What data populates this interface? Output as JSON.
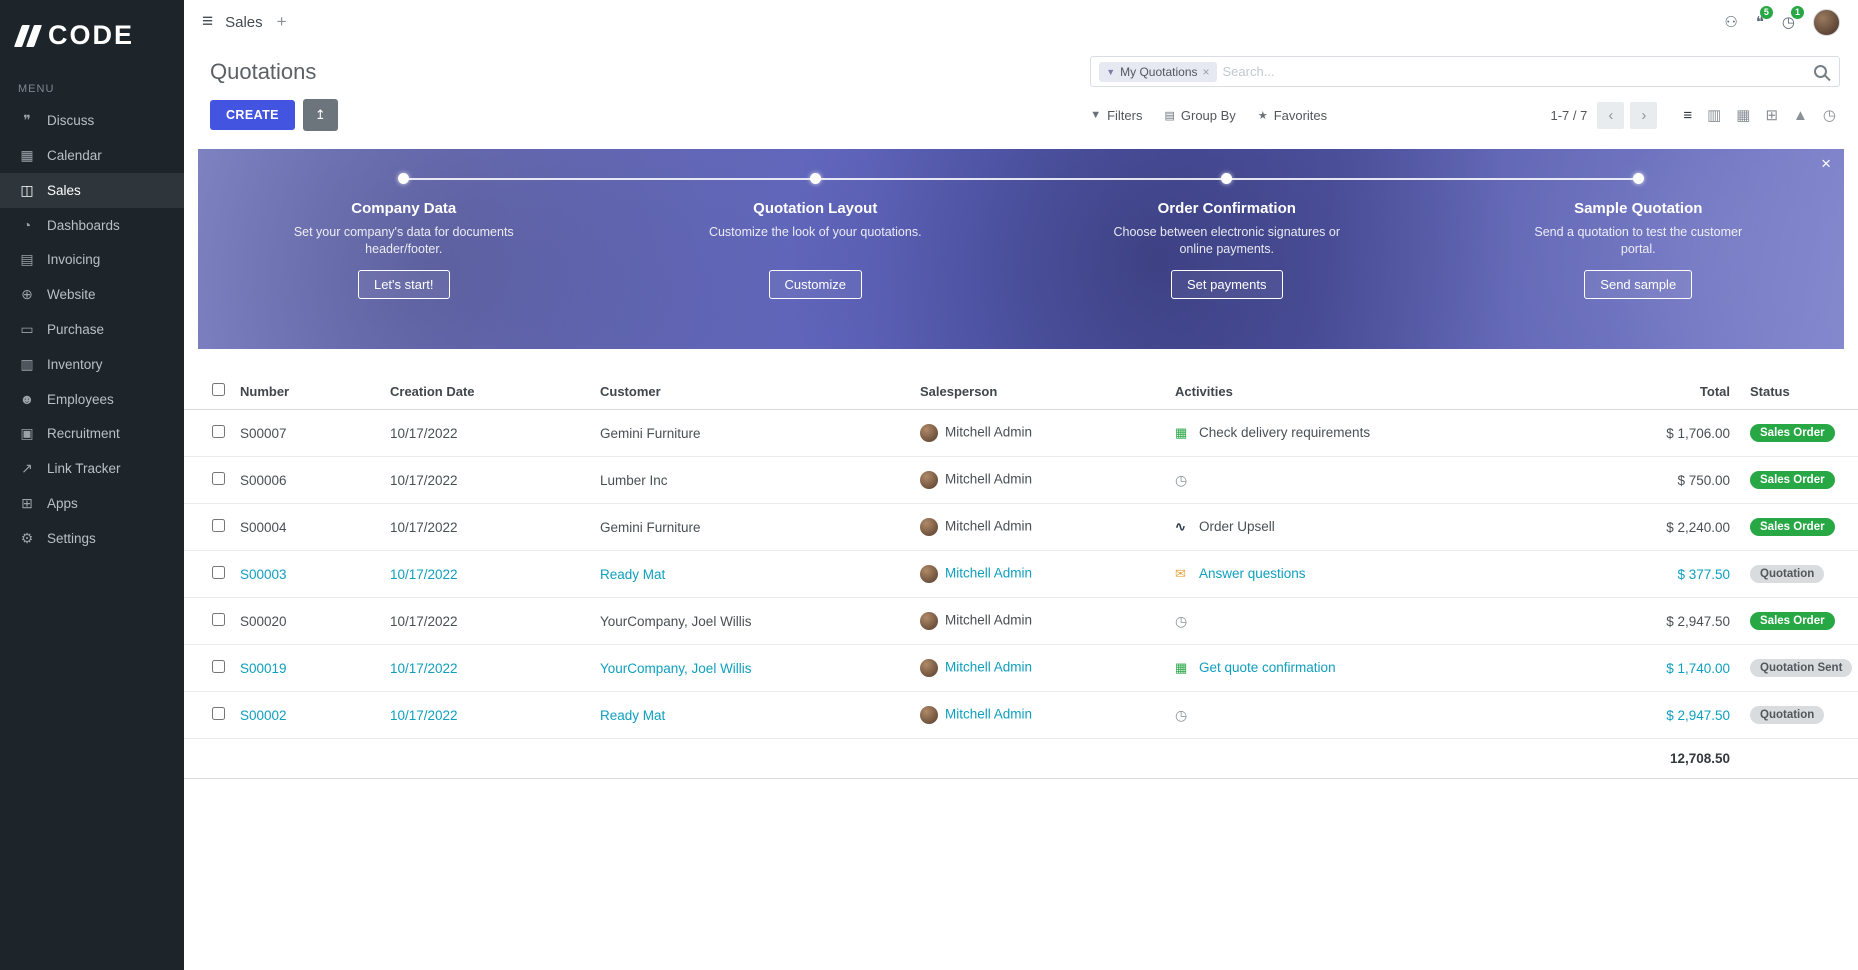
{
  "colors": {
    "sidebar_bg": "#1d252b",
    "accent": "#4355e0",
    "teal_link": "#0e9fbe",
    "success_badge": "#28a745",
    "neutral_badge": "#d8dcdf",
    "banner_purple": "#5a60bb"
  },
  "brand": {
    "name": "CODE"
  },
  "topbar": {
    "app_name": "Sales",
    "add_tab": "+",
    "message_badge": "5",
    "activity_badge": "1"
  },
  "sidebar": {
    "menu_label": "MENU",
    "items": [
      {
        "label": "Discuss",
        "icon": "discuss-icon",
        "glyph": "❞"
      },
      {
        "label": "Calendar",
        "icon": "calendar-icon",
        "glyph": "▦"
      },
      {
        "label": "Sales",
        "icon": "sales-icon",
        "glyph": "◫",
        "active": true
      },
      {
        "label": "Dashboards",
        "icon": "dashboards-icon",
        "glyph": "◔"
      },
      {
        "label": "Invoicing",
        "icon": "invoicing-icon",
        "glyph": "▤"
      },
      {
        "label": "Website",
        "icon": "website-icon",
        "glyph": "⊕"
      },
      {
        "label": "Purchase",
        "icon": "purchase-icon",
        "glyph": "▭"
      },
      {
        "label": "Inventory",
        "icon": "inventory-icon",
        "glyph": "▥"
      },
      {
        "label": "Employees",
        "icon": "employees-icon",
        "glyph": "☻"
      },
      {
        "label": "Recruitment",
        "icon": "recruitment-icon",
        "glyph": "▣"
      },
      {
        "label": "Link Tracker",
        "icon": "link-icon",
        "glyph": "↗"
      },
      {
        "label": "Apps",
        "icon": "apps-icon",
        "glyph": "⊞"
      },
      {
        "label": "Settings",
        "icon": "settings-icon",
        "glyph": "⚙"
      }
    ]
  },
  "control_panel": {
    "title": "Quotations",
    "create_label": "CREATE",
    "filter_chip": "My Quotations",
    "search_placeholder": "Search...",
    "filters_label": "Filters",
    "groupby_label": "Group By",
    "favorites_label": "Favorites",
    "pager": "1-7 / 7"
  },
  "banner": {
    "close_label": "×",
    "steps": [
      {
        "title": "Company Data",
        "description": "Set your company's data for documents header/footer.",
        "button": "Let's start!"
      },
      {
        "title": "Quotation Layout",
        "description": "Customize the look of your quotations.",
        "button": "Customize"
      },
      {
        "title": "Order Confirmation",
        "description": "Choose between electronic signatures or online payments.",
        "button": "Set payments"
      },
      {
        "title": "Sample Quotation",
        "description": "Send a quotation to test the customer portal.",
        "button": "Send sample"
      }
    ]
  },
  "icons": {
    "hamburger": "≡",
    "bug": "⚇",
    "messages": "❝",
    "clock": "◷",
    "funnel": "▼",
    "groupby": "▤",
    "star": "★",
    "export": "↥",
    "prev": "‹",
    "next": "›",
    "chip_remove": "×",
    "tasks": "▦",
    "chart": "∿",
    "envelope": "✉",
    "list_view": "≡",
    "kanban_view": "▥",
    "calendar_view": "▦",
    "pivot_view": "⊞",
    "graph_view": "▲",
    "activity_view": "◷"
  },
  "table": {
    "headers": {
      "number": "Number",
      "creation_date": "Creation Date",
      "customer": "Customer",
      "salesperson": "Salesperson",
      "activities": "Activities",
      "total": "Total",
      "status": "Status"
    },
    "rows": [
      {
        "number": "S00007",
        "creation_date": "10/17/2022",
        "customer": "Gemini Furniture",
        "salesperson": "Mitchell Admin",
        "activity": "Check delivery requirements",
        "activity_icon": "tasks-icon",
        "total": "$ 1,706.00",
        "status": "Sales Order",
        "status_variant": "success",
        "highlighted": false
      },
      {
        "number": "S00006",
        "creation_date": "10/17/2022",
        "customer": "Lumber Inc",
        "salesperson": "Mitchell Admin",
        "activity": "",
        "activity_icon": "clock-icon",
        "total": "$ 750.00",
        "status": "Sales Order",
        "status_variant": "success",
        "highlighted": false
      },
      {
        "number": "S00004",
        "creation_date": "10/17/2022",
        "customer": "Gemini Furniture",
        "salesperson": "Mitchell Admin",
        "activity": "Order Upsell",
        "activity_icon": "chart-icon",
        "total": "$ 2,240.00",
        "status": "Sales Order",
        "status_variant": "success",
        "highlighted": false
      },
      {
        "number": "S00003",
        "creation_date": "10/17/2022",
        "customer": "Ready Mat",
        "salesperson": "Mitchell Admin",
        "activity": "Answer questions",
        "activity_icon": "envelope-icon",
        "total": "$ 377.50",
        "status": "Quotation",
        "status_variant": "neutral",
        "highlighted": true
      },
      {
        "number": "S00020",
        "creation_date": "10/17/2022",
        "customer": "YourCompany, Joel Willis",
        "salesperson": "Mitchell Admin",
        "activity": "",
        "activity_icon": "clock-icon",
        "total": "$ 2,947.50",
        "status": "Sales Order",
        "status_variant": "success",
        "highlighted": false
      },
      {
        "number": "S00019",
        "creation_date": "10/17/2022",
        "customer": "YourCompany, Joel Willis",
        "salesperson": "Mitchell Admin",
        "activity": "Get quote confirmation",
        "activity_icon": "tasks-icon",
        "total": "$ 1,740.00",
        "status": "Quotation Sent",
        "status_variant": "neutral",
        "highlighted": true
      },
      {
        "number": "S00002",
        "creation_date": "10/17/2022",
        "customer": "Ready Mat",
        "salesperson": "Mitchell Admin",
        "activity": "",
        "activity_icon": "clock-icon",
        "total": "$ 2,947.50",
        "status": "Quotation",
        "status_variant": "neutral",
        "highlighted": true
      }
    ],
    "footer_total": "12,708.50"
  }
}
